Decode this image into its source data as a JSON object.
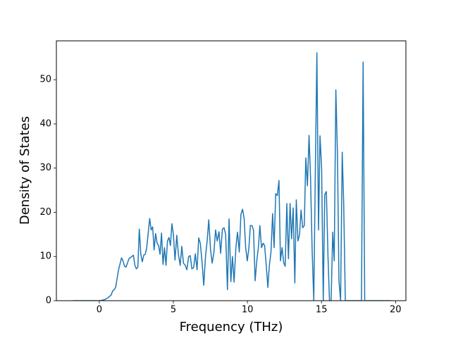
{
  "chart_data": {
    "type": "line",
    "xlabel": "Frequency (THz)",
    "ylabel": "Density of States",
    "x": [
      -1.8,
      0,
      0.2,
      0.4,
      0.6,
      0.8,
      0.9,
      1.0,
      1.1,
      1.2,
      1.3,
      1.5,
      1.6,
      1.7,
      1.8,
      1.9,
      2.0,
      2.2,
      2.3,
      2.4,
      2.5,
      2.6,
      2.7,
      2.8,
      2.9,
      3.0,
      3.1,
      3.2,
      3.4,
      3.5,
      3.6,
      3.7,
      3.8,
      3.9,
      4.0,
      4.1,
      4.2,
      4.3,
      4.4,
      4.5,
      4.6,
      4.7,
      4.8,
      4.9,
      5,
      5.11,
      5.23,
      5.34,
      5.46,
      5.57,
      5.68,
      5.8,
      5.91,
      6.03,
      6.14,
      6.25,
      6.37,
      6.48,
      6.6,
      6.71,
      6.82,
      6.94,
      7.05,
      7.17,
      7.28,
      7.39,
      7.51,
      7.62,
      7.74,
      7.85,
      7.96,
      8.08,
      8.19,
      8.31,
      8.42,
      8.53,
      8.65,
      8.76,
      8.88,
      8.99,
      9.1,
      9.22,
      9.33,
      9.45,
      9.56,
      9.67,
      9.78,
      9.88,
      9.99,
      10.1,
      10.2,
      10.31,
      10.41,
      10.52,
      10.63,
      10.74,
      10.84,
      10.95,
      11.06,
      11.16,
      11.27,
      11.38,
      11.48,
      11.59,
      11.7,
      11.8,
      11.91,
      12.02,
      12.13,
      12.23,
      12.34,
      12.45,
      12.55,
      12.66,
      12.77,
      12.88,
      12.98,
      13.09,
      13.2,
      13.3,
      13.41,
      13.52,
      13.62,
      13.73,
      13.84,
      13.94,
      14.05,
      14.16,
      14.26,
      14.37,
      14.48,
      14.58,
      14.69,
      14.8,
      14.9,
      15.01,
      15.12,
      15.22,
      15.33,
      15.44,
      15.54,
      15.65,
      15.76,
      15.86,
      15.97,
      16.08,
      16.18,
      16.29,
      16.4,
      16.5,
      16.61,
      17.7,
      17.81,
      17.92,
      19.7
    ],
    "series": [
      {
        "color": "#1f77b4",
        "values": [
          0,
          0,
          0.1,
          0.3,
          0.7,
          1.3,
          2.2,
          2.5,
          3,
          5,
          7,
          9.7,
          9,
          7.8,
          7.6,
          8.5,
          9.5,
          10,
          10.3,
          8,
          7.2,
          7.6,
          16.2,
          10.5,
          8.8,
          10.3,
          10.5,
          12,
          18.6,
          16,
          16.7,
          11.5,
          15.2,
          13,
          12.5,
          10.5,
          15.3,
          8.2,
          12,
          8,
          13.5,
          14.3,
          12.5,
          17.4,
          15,
          9.2,
          14.8,
          10.5,
          8,
          12.3,
          8.5,
          8,
          7,
          10,
          10.2,
          7.2,
          7.5,
          10.6,
          7,
          14.2,
          13,
          8.6,
          3.5,
          10,
          13.5,
          18.3,
          11.5,
          8.5,
          11,
          16,
          13.5,
          15.6,
          10.7,
          16.2,
          16.5,
          15,
          2.5,
          18.5,
          4.3,
          10,
          4.2,
          12,
          15.5,
          11,
          19.5,
          20.7,
          18.6,
          12,
          9,
          12,
          17,
          17,
          16,
          4.5,
          9,
          12,
          17,
          12,
          13,
          12.5,
          8,
          3,
          8,
          11,
          19.7,
          12,
          24.2,
          23.8,
          27.2,
          9,
          12,
          8.6,
          7.8,
          22,
          9.5,
          22,
          14,
          21,
          4,
          22.8,
          13.5,
          15,
          20.5,
          16.5,
          17,
          32.3,
          26,
          37.4,
          28,
          11.3,
          0,
          28,
          56.1,
          16,
          37.3,
          30,
          0,
          24,
          24.7,
          10,
          0,
          0,
          15.5,
          9,
          47.7,
          33,
          4.5,
          0,
          33.6,
          22,
          0,
          0,
          54,
          0,
          0
        ]
      }
    ],
    "xlim": [
      -2.9,
      20.7
    ],
    "ylim": [
      0,
      58.8
    ],
    "xticks": [
      0,
      5,
      10,
      15,
      20
    ],
    "yticks": [
      0,
      10,
      20,
      30,
      40,
      50
    ]
  }
}
